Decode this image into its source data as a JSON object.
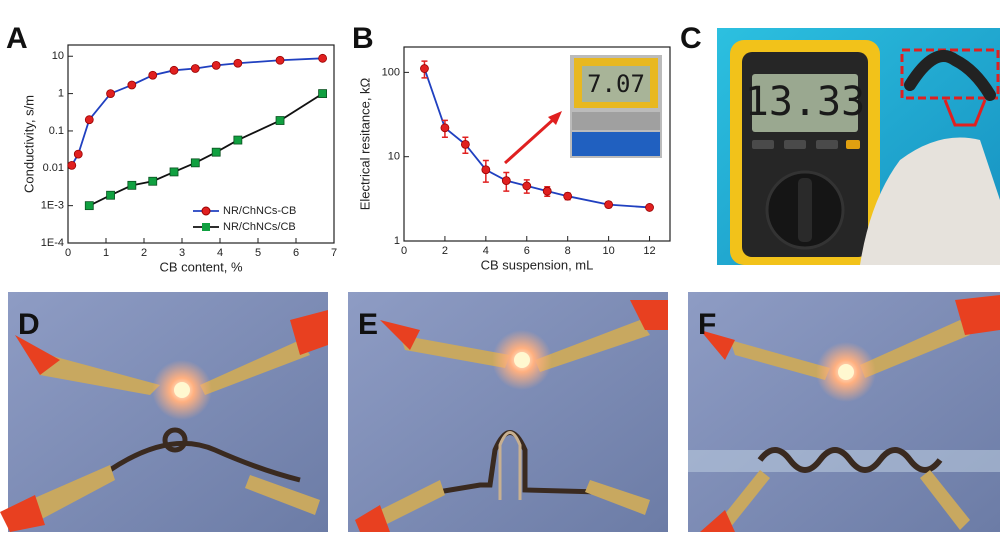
{
  "panel_labels": [
    "A",
    "B",
    "C",
    "D",
    "E",
    "F"
  ],
  "meter_reading": "13.33",
  "inset_reading": "7.07",
  "chart_data": [
    {
      "type": "line",
      "log_y": true,
      "legend": "lower right",
      "x_label": "CB content, %",
      "y_label": "Conductivity, s/m",
      "xlim": [
        0,
        7
      ],
      "xticks": [
        0,
        1,
        2,
        3,
        4,
        5,
        6,
        7
      ],
      "ylim": [
        0.0001,
        20
      ],
      "yticks": [
        {
          "value": 0.0001,
          "label": "1E-4"
        },
        {
          "value": 0.001,
          "label": "1E-3"
        },
        0.01,
        0.1,
        1,
        10
      ],
      "series": [
        {
          "name": "NR/ChNCs-CB",
          "color": "#e02020",
          "line_color": "#2040c0",
          "marker": "circle",
          "x": [
            0.1,
            0.27,
            0.56,
            1.12,
            1.68,
            2.23,
            2.79,
            3.35,
            3.9,
            4.47,
            5.58,
            6.7
          ],
          "values": [
            0.012,
            0.024,
            0.2,
            1.0,
            1.7,
            3.1,
            4.2,
            4.7,
            5.7,
            6.5,
            7.8,
            8.8
          ]
        },
        {
          "name": "NR/ChNCs/CB",
          "color": "#10a040",
          "line_color": "#111111",
          "marker": "square",
          "x": [
            0.56,
            1.12,
            1.68,
            2.23,
            2.79,
            3.35,
            3.9,
            4.47,
            5.58,
            6.7
          ],
          "values": [
            0.001,
            0.0019,
            0.0035,
            0.0045,
            0.008,
            0.014,
            0.027,
            0.057,
            0.19,
            1.0
          ]
        }
      ]
    },
    {
      "type": "line",
      "log_y": true,
      "x_label": "CB suspension, mL",
      "y_label": "Electrical resitance, kΩ",
      "xlim": [
        0,
        13
      ],
      "xticks": [
        0,
        2,
        4,
        6,
        8,
        10,
        12
      ],
      "ylim": [
        1,
        200
      ],
      "yticks": [
        1,
        10,
        100
      ],
      "series": [
        {
          "color": "#e02020",
          "line_color": "#2040c0",
          "marker": "circle",
          "x": [
            1,
            2,
            3,
            4,
            5,
            6,
            7,
            8,
            10,
            12
          ],
          "values": [
            111,
            22,
            14,
            7.0,
            5.2,
            4.5,
            3.9,
            3.4,
            2.7,
            2.5
          ],
          "errors": [
            25,
            5,
            3,
            2,
            1.3,
            0.8,
            0.5,
            0.3,
            0.2,
            0.1
          ]
        }
      ]
    }
  ]
}
